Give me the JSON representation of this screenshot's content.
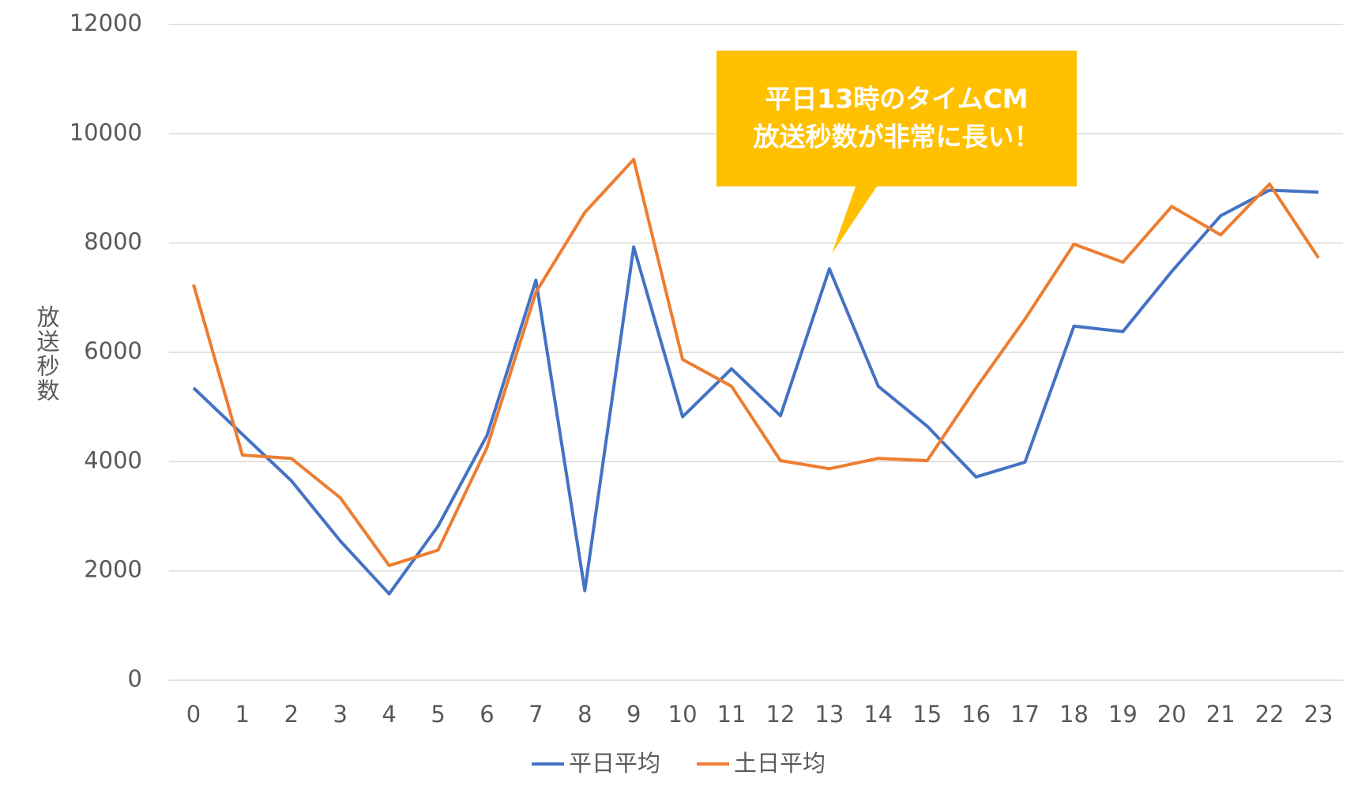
{
  "chart_data": {
    "type": "line",
    "y_label": "放送秒数",
    "categories": [
      "0",
      "1",
      "2",
      "3",
      "4",
      "5",
      "6",
      "7",
      "8",
      "9",
      "10",
      "11",
      "12",
      "13",
      "14",
      "15",
      "16",
      "17",
      "18",
      "19",
      "20",
      "21",
      "22",
      "23"
    ],
    "series": [
      {
        "name": "平日平均",
        "color": "#4472c4",
        "values": [
          5350,
          4500,
          3650,
          2550,
          1580,
          2820,
          4480,
          7320,
          1640,
          7930,
          4820,
          5700,
          4840,
          7530,
          5380,
          4650,
          3720,
          3990,
          6480,
          6380,
          7480,
          8500,
          8970,
          8930
        ]
      },
      {
        "name": "土日平均",
        "color": "#ed7d31",
        "values": [
          7240,
          4120,
          4060,
          3340,
          2100,
          2380,
          4260,
          7100,
          8560,
          9530,
          5870,
          5380,
          4020,
          3870,
          4060,
          4020,
          5350,
          6610,
          7980,
          7650,
          8670,
          8150,
          9080,
          7730
        ]
      }
    ],
    "ylim": [
      0,
      12000
    ],
    "yticks": [
      0,
      2000,
      4000,
      6000,
      8000,
      10000,
      12000
    ],
    "grid": true,
    "legend": "bottom",
    "annotation": {
      "lines": [
        "平日13時のタイムCM",
        "放送秒数が非常に長い！"
      ],
      "color": "#ffc000"
    }
  }
}
